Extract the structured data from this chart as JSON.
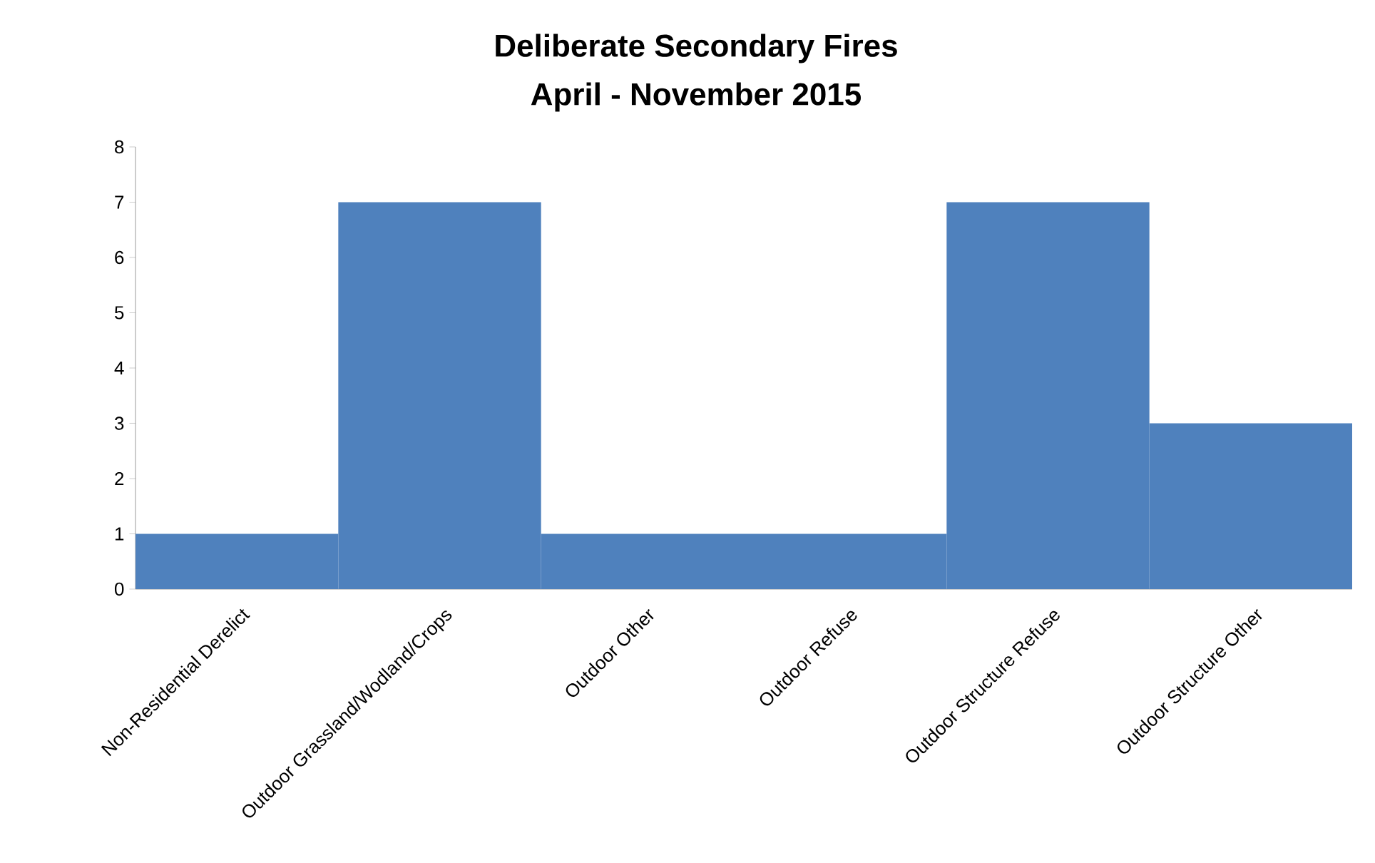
{
  "chart_data": {
    "type": "bar",
    "title": "Deliberate Secondary Fires",
    "subtitle": "April - November 2015",
    "categories": [
      "Non-Residential Derelict",
      "Outdoor Grassland/Wodland/Crops",
      "Outdoor Other",
      "Outdoor Refuse",
      "Outdoor Structure Refuse",
      "Outdoor Structure Other"
    ],
    "values": [
      1,
      7,
      1,
      1,
      7,
      3
    ],
    "color": "#4f81bd",
    "ylim": [
      0,
      8
    ],
    "yticks": [
      0,
      1,
      2,
      3,
      4,
      5,
      6,
      7,
      8
    ]
  }
}
